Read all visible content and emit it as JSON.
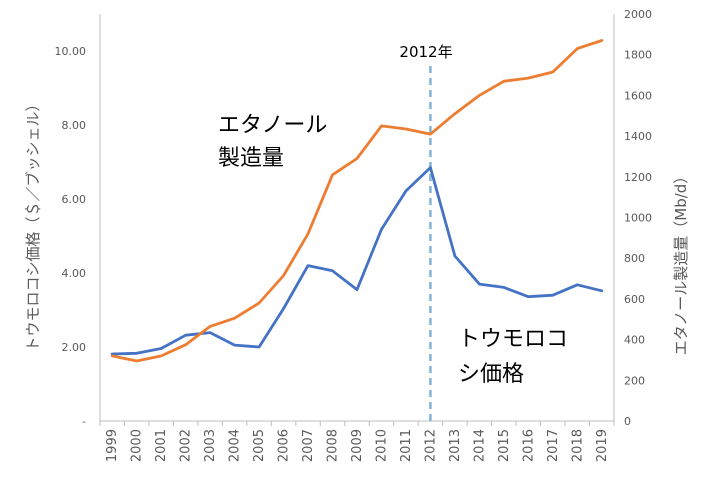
{
  "chart_data": {
    "type": "line",
    "x": [
      "1999",
      "2000",
      "2001",
      "2002",
      "2003",
      "2004",
      "2005",
      "2006",
      "2007",
      "2008",
      "2009",
      "2010",
      "2011",
      "2012",
      "2013",
      "2014",
      "2015",
      "2016",
      "2017",
      "2018",
      "2019"
    ],
    "series": [
      {
        "axis": "left",
        "color": "#4472C4",
        "values": [
          1.81,
          1.83,
          1.96,
          2.32,
          2.39,
          2.05,
          2.0,
          3.04,
          4.2,
          4.06,
          3.55,
          5.18,
          6.22,
          6.85,
          4.46,
          3.7,
          3.61,
          3.36,
          3.4,
          3.68,
          3.52
        ]
      },
      {
        "axis": "right",
        "color": "#ED7D31",
        "values": [
          320,
          295,
          320,
          375,
          465,
          505,
          580,
          715,
          920,
          1210,
          1290,
          1450,
          1435,
          1410,
          1510,
          1600,
          1670,
          1685,
          1715,
          1830,
          1870
        ]
      }
    ],
    "y_left": {
      "label": "トウモロコシ価格（＄／ブッシェル）",
      "range": [
        0,
        11
      ],
      "ticks": [
        "-",
        "2.00",
        "4.00",
        "6.00",
        "8.00",
        "10.00"
      ]
    },
    "y_right": {
      "label": "エタノール製造量（Mb/d）",
      "range": [
        0,
        2000
      ],
      "ticks": [
        "0",
        "200",
        "400",
        "600",
        "800",
        "1000",
        "1200",
        "1400",
        "1600",
        "1800",
        "2000"
      ]
    },
    "marker": {
      "x": "2012",
      "label": "2012年",
      "color": "#7FB3D5"
    },
    "annotations": {
      "ethanol_line1": "エタノール",
      "ethanol_line2": "製造量",
      "corn_line1": "トウモロコ",
      "corn_line2": "シ価格"
    },
    "grid": false
  }
}
